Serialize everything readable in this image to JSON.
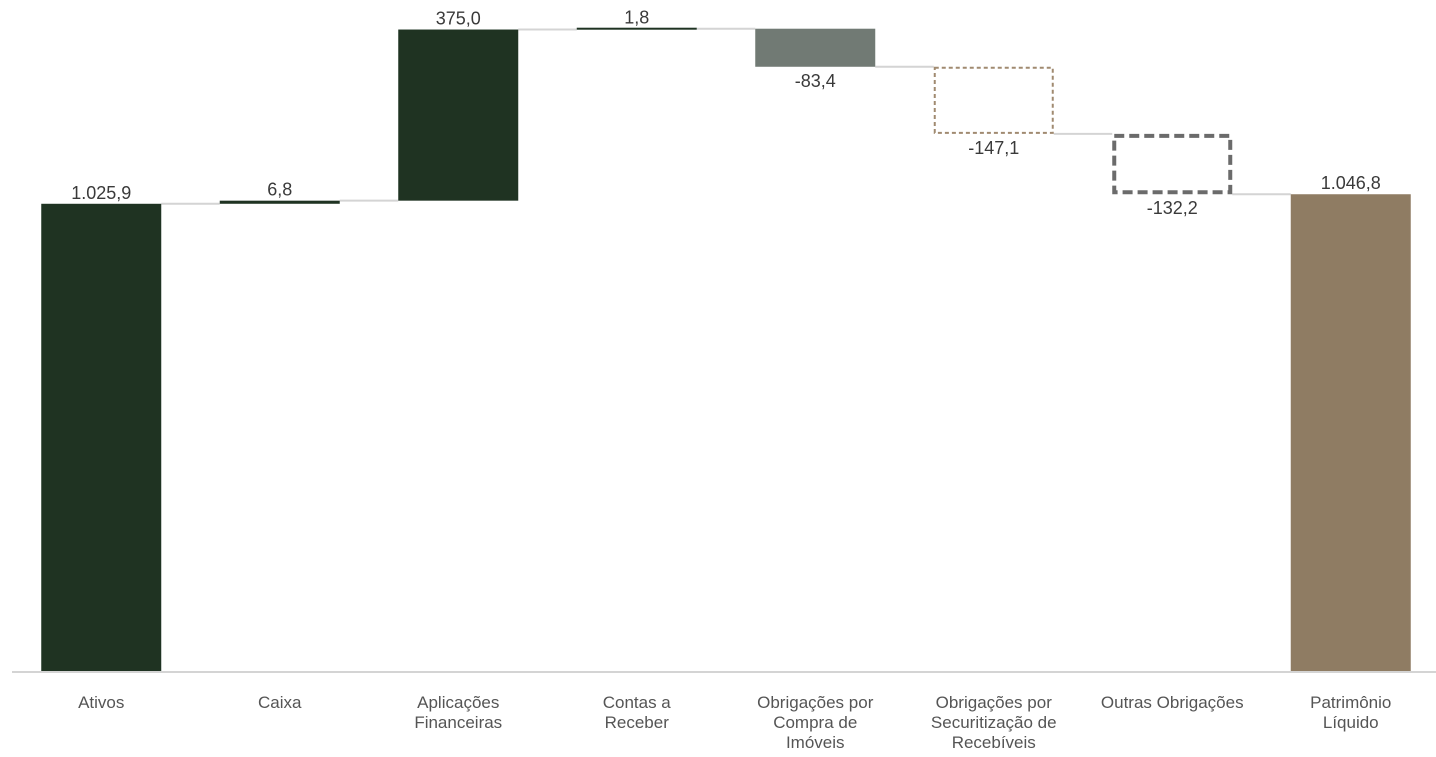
{
  "chart_data": {
    "type": "waterfall",
    "categories": [
      [
        "Ativos"
      ],
      [
        "Caixa"
      ],
      [
        "Aplicações",
        "Financeiras"
      ],
      [
        "Contas a",
        "Receber"
      ],
      [
        "Obrigações por",
        "Compra de",
        "Imóveis"
      ],
      [
        "Obrigações por",
        "Securitização de",
        "Recebíveis"
      ],
      [
        "Outras Obrigações"
      ],
      [
        "Patrimônio",
        "Líquido"
      ]
    ],
    "values": [
      1025.9,
      6.8,
      375.0,
      1.8,
      -83.4,
      -147.1,
      -132.2,
      1046.8
    ],
    "labels": [
      "1.025,9",
      "6,8",
      "375,0",
      "1,8",
      "-83,4",
      "-147,1",
      "-132,2",
      "1.046,8"
    ],
    "kinds": [
      "total",
      "delta",
      "delta",
      "delta",
      "delta",
      "delta",
      "delta",
      "total"
    ],
    "colors": {
      "ativos": "#1f3322",
      "positive": "#1f3322",
      "negative_solid": "#717a74",
      "negative_dotted_outline": "#a08a70",
      "negative_dashed_outline": "#6b6b6b",
      "patrimonio": "#8f7c63",
      "connector": "#d4d4d4",
      "axis": "#d4d4d4"
    },
    "ylim": [
      0,
      1410
    ],
    "grid": false
  }
}
